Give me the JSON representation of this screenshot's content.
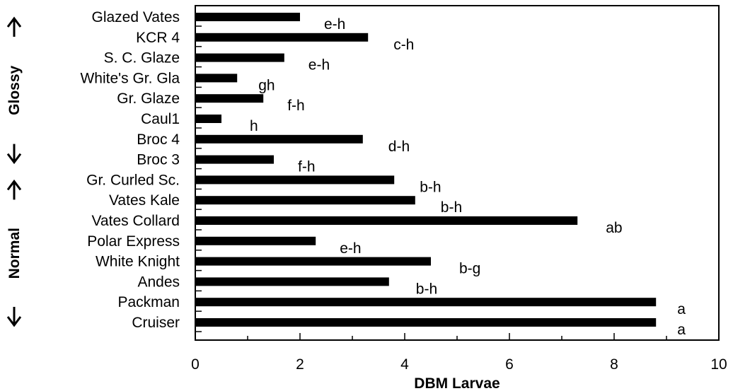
{
  "chart_data": {
    "type": "bar",
    "orientation": "horizontal",
    "categories": [
      "Glazed Vates",
      "KCR 4",
      "S. C. Glaze",
      "White's Gr. Gla",
      "Gr. Glaze",
      "Caul1",
      "Broc 4",
      "Broc 3",
      "Gr. Curled Sc.",
      "Vates Kale",
      "Vates Collard",
      "Polar Express",
      "White Knight",
      "Andes",
      "Packman",
      "Cruiser"
    ],
    "values": [
      2.0,
      3.3,
      1.7,
      0.8,
      1.3,
      0.5,
      3.2,
      1.5,
      3.8,
      4.2,
      7.3,
      2.3,
      4.5,
      3.7,
      8.8,
      8.8
    ],
    "significance_letters": [
      "e-h",
      "c-h",
      "e-h",
      "gh",
      "f-h",
      "h",
      "d-h",
      "f-h",
      "b-h",
      "b-h",
      "ab",
      "e-h",
      "b-g",
      "b-h",
      "a",
      "a"
    ],
    "xlabel": "DBM Larvae",
    "ylabel": "",
    "xlim": [
      0,
      10
    ],
    "xticks": [
      "0",
      "2",
      "4",
      "6",
      "8",
      "10"
    ],
    "grid": false,
    "bar_color": "#000000",
    "groups": [
      {
        "label": "Glossy",
        "categories": [
          "Glazed Vates",
          "KCR 4",
          "S. C. Glaze",
          "White's Gr. Gla",
          "Gr. Glaze",
          "Caul1",
          "Broc 4",
          "Broc 3"
        ]
      },
      {
        "label": "Normal",
        "categories": [
          "Gr. Curled Sc.",
          "Vates Kale",
          "Vates Collard",
          "Polar Express",
          "White Knight",
          "Andes",
          "Packman",
          "Cruiser"
        ]
      }
    ]
  }
}
